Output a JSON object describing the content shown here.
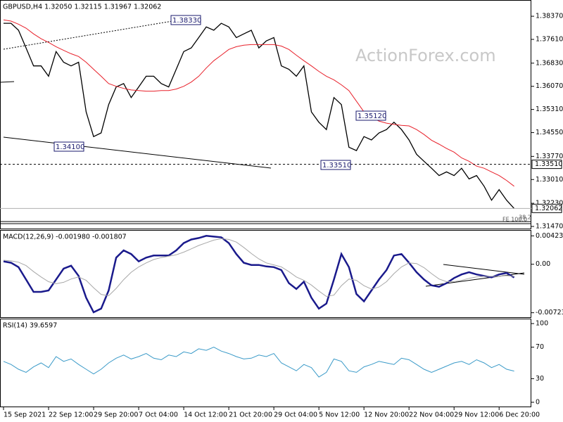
{
  "chart_data": [
    {
      "type": "line",
      "title": "GBPUSD,H4 1.32050 1.32115 1.31967 1.32062",
      "watermark": "ActionForex.com",
      "categories": [
        "15 Sep 2021",
        null,
        null,
        null,
        null,
        null,
        "22 Sep 12:00",
        null,
        null,
        null,
        null,
        null,
        "29 Sep 20:00",
        null,
        null,
        null,
        null,
        null,
        "7 Oct 04:00",
        null,
        null,
        null,
        null,
        null,
        "14 Oct 12:00",
        null,
        null,
        null,
        null,
        null,
        "21 Oct 20:00",
        null,
        null,
        null,
        null,
        null,
        "29 Oct 04:00",
        null,
        null,
        null,
        null,
        null,
        "5 Nov 12:00",
        null,
        null,
        null,
        null,
        null,
        "12 Nov 20:00",
        null,
        null,
        null,
        null,
        null,
        "22 Nov 04:00",
        null,
        null,
        null,
        null,
        null,
        "29 Nov 12:00",
        null,
        null,
        null,
        null,
        null,
        "6 Dec 20:00",
        null,
        null
      ],
      "series": [
        {
          "color": "#000000",
          "values": [
            1.3814,
            1.3814,
            1.3791,
            1.3733,
            1.3674,
            1.3674,
            1.364,
            1.3721,
            1.3686,
            1.3674,
            1.3686,
            1.3523,
            1.3442,
            1.3454,
            1.3547,
            1.3605,
            1.3616,
            1.357,
            1.3605,
            1.364,
            1.364,
            1.3616,
            1.3605,
            1.3663,
            1.3721,
            1.3733,
            1.3767,
            1.3802,
            1.3791,
            1.3814,
            1.3802,
            1.3767,
            1.3779,
            1.3791,
            1.3733,
            1.3756,
            1.3767,
            1.3674,
            1.3663,
            1.364,
            1.3674,
            1.3523,
            1.3489,
            1.3465,
            1.357,
            1.3547,
            1.3407,
            1.3396,
            1.3442,
            1.3431,
            1.3454,
            1.3465,
            1.3489,
            1.3465,
            1.3431,
            1.3384,
            1.3361,
            1.3338,
            1.3314,
            1.3326,
            1.3314,
            1.3338,
            1.3303,
            1.3314,
            1.3279,
            1.3233,
            1.3268,
            1.3233,
            1.3206
          ]
        },
        {
          "color": "#e8202a",
          "values": [
            1.3825,
            1.3821,
            1.3811,
            1.3798,
            1.3779,
            1.3763,
            1.3751,
            1.3737,
            1.3725,
            1.3714,
            1.3705,
            1.3686,
            1.3663,
            1.364,
            1.3616,
            1.3607,
            1.36,
            1.3595,
            1.3593,
            1.3591,
            1.3591,
            1.3593,
            1.3593,
            1.3598,
            1.3607,
            1.3621,
            1.364,
            1.3667,
            1.3691,
            1.3709,
            1.3728,
            1.3737,
            1.3742,
            1.3744,
            1.3744,
            1.3744,
            1.3744,
            1.3739,
            1.3728,
            1.3709,
            1.3691,
            1.3674,
            1.3656,
            1.364,
            1.3628,
            1.3612,
            1.3593,
            1.3558,
            1.3523,
            1.3505,
            1.3493,
            1.3486,
            1.3482,
            1.3479,
            1.3477,
            1.3465,
            1.3449,
            1.343,
            1.3417,
            1.3403,
            1.3391,
            1.3372,
            1.3361,
            1.3345,
            1.3338,
            1.3326,
            1.3314,
            1.3298,
            1.3279
          ]
        }
      ],
      "ylim": [
        1.314,
        1.3888
      ],
      "yticks": [
        {
          "value": 1.3837,
          "label": "1.38370"
        },
        {
          "value": 1.3761,
          "label": "1.37610"
        },
        {
          "value": 1.3683,
          "label": "1.36830"
        },
        {
          "value": 1.3607,
          "label": "1.36070"
        },
        {
          "value": 1.3531,
          "label": "1.35310"
        },
        {
          "value": 1.3455,
          "label": "1.34550"
        },
        {
          "value": 1.3377,
          "label": "1.33770"
        },
        {
          "value": 1.3301,
          "label": "1.33010"
        },
        {
          "value": 1.3223,
          "label": "1.32230"
        },
        {
          "value": 1.3147,
          "label": "1.31470"
        }
      ],
      "price_markers": [
        {
          "value": 1.3351,
          "label": "1.33510"
        },
        {
          "value": 1.32062,
          "label": "1.32062"
        }
      ],
      "annotations": [
        "1.38330",
        "1.34100",
        "1.35120",
        "1.33510",
        "FE 100.0",
        "38.2"
      ]
    },
    {
      "type": "line",
      "title": "MACD(12,26,9) -0.001980 -0.001807",
      "series": [
        {
          "color": "#1a1a8c",
          "values": [
            0.00043,
            0.00022,
            -0.00043,
            -0.00228,
            -0.00412,
            -0.00412,
            -0.00391,
            -0.00228,
            -0.00065,
            -0.00022,
            -0.00174,
            -0.00499,
            -0.00716,
            -0.00662,
            -0.00391,
            0.00098,
            0.00206,
            0.00152,
            0.00043,
            0.00098,
            0.0013,
            0.0013,
            0.0013,
            0.00206,
            0.00315,
            0.00369,
            0.00391,
            0.00423,
            0.00412,
            0.00401,
            0.00315,
            0.00152,
            0.00022,
            -0.00011,
            -0.00011,
            -0.00033,
            -0.00043,
            -0.00087,
            -0.00282,
            -0.00369,
            -0.0026,
            -0.00499,
            -0.00662,
            -0.00586,
            -0.00228,
            0.00152,
            -0.00043,
            -0.00445,
            -0.00553,
            -0.00391,
            -0.00228,
            -0.00087,
            0.0013,
            0.00152,
            0.00022,
            -0.00119,
            -0.00228,
            -0.00315,
            -0.00336,
            -0.00282,
            -0.00206,
            -0.00152,
            -0.00119,
            -0.00152,
            -0.00174,
            -0.00195,
            -0.00152,
            -0.0013,
            -0.00198
          ]
        },
        {
          "color": "#a8a8a8",
          "values": [
            0.0006,
            0.0005,
            0.0003,
            -0.0002,
            -0.0011,
            -0.0019,
            -0.0026,
            -0.0029,
            -0.0027,
            -0.0022,
            -0.0019,
            -0.0024,
            -0.0035,
            -0.0045,
            -0.0047,
            -0.0036,
            -0.0023,
            -0.0012,
            -0.0004,
            0.0002,
            0.0007,
            0.001,
            0.0012,
            0.0014,
            0.0018,
            0.0023,
            0.0028,
            0.0032,
            0.0036,
            0.0038,
            0.0037,
            0.0033,
            0.0025,
            0.0016,
            0.0008,
            0.0002,
            -0.0001,
            -0.0004,
            -0.0011,
            -0.0019,
            -0.0024,
            -0.0031,
            -0.004,
            -0.0048,
            -0.0046,
            -0.0032,
            -0.0022,
            -0.0024,
            -0.0032,
            -0.0037,
            -0.0034,
            -0.0026,
            -0.0014,
            -0.0004,
            0.0002,
            0.0001,
            -0.0005,
            -0.0014,
            -0.0022,
            -0.0026,
            -0.0026,
            -0.0024,
            -0.0021,
            -0.0019,
            -0.0018,
            -0.0018,
            -0.0018,
            -0.0017,
            -0.00181
          ]
        }
      ],
      "ylim": [
        -0.008,
        0.005
      ],
      "yticks": [
        0.004231,
        {
          "value": 0,
          "label": "0.00"
        },
        -0.00723
      ]
    },
    {
      "type": "line",
      "title": "RSI(14) 39.6597",
      "series": [
        {
          "color": "#3a9ac8",
          "values": [
            52,
            48,
            42,
            38,
            45,
            50,
            44,
            58,
            52,
            55,
            48,
            42,
            36,
            42,
            50,
            56,
            60,
            55,
            58,
            62,
            56,
            54,
            60,
            58,
            64,
            62,
            68,
            66,
            70,
            65,
            62,
            58,
            55,
            56,
            60,
            58,
            62,
            50,
            45,
            40,
            48,
            44,
            32,
            38,
            55,
            52,
            40,
            38,
            45,
            48,
            52,
            50,
            48,
            56,
            54,
            48,
            42,
            38,
            42,
            46,
            50,
            52,
            48,
            54,
            50,
            44,
            48,
            42,
            39.66
          ]
        }
      ],
      "ylim": [
        -5.4,
        105.4
      ],
      "yticks": [
        100,
        70,
        30,
        0
      ]
    }
  ]
}
